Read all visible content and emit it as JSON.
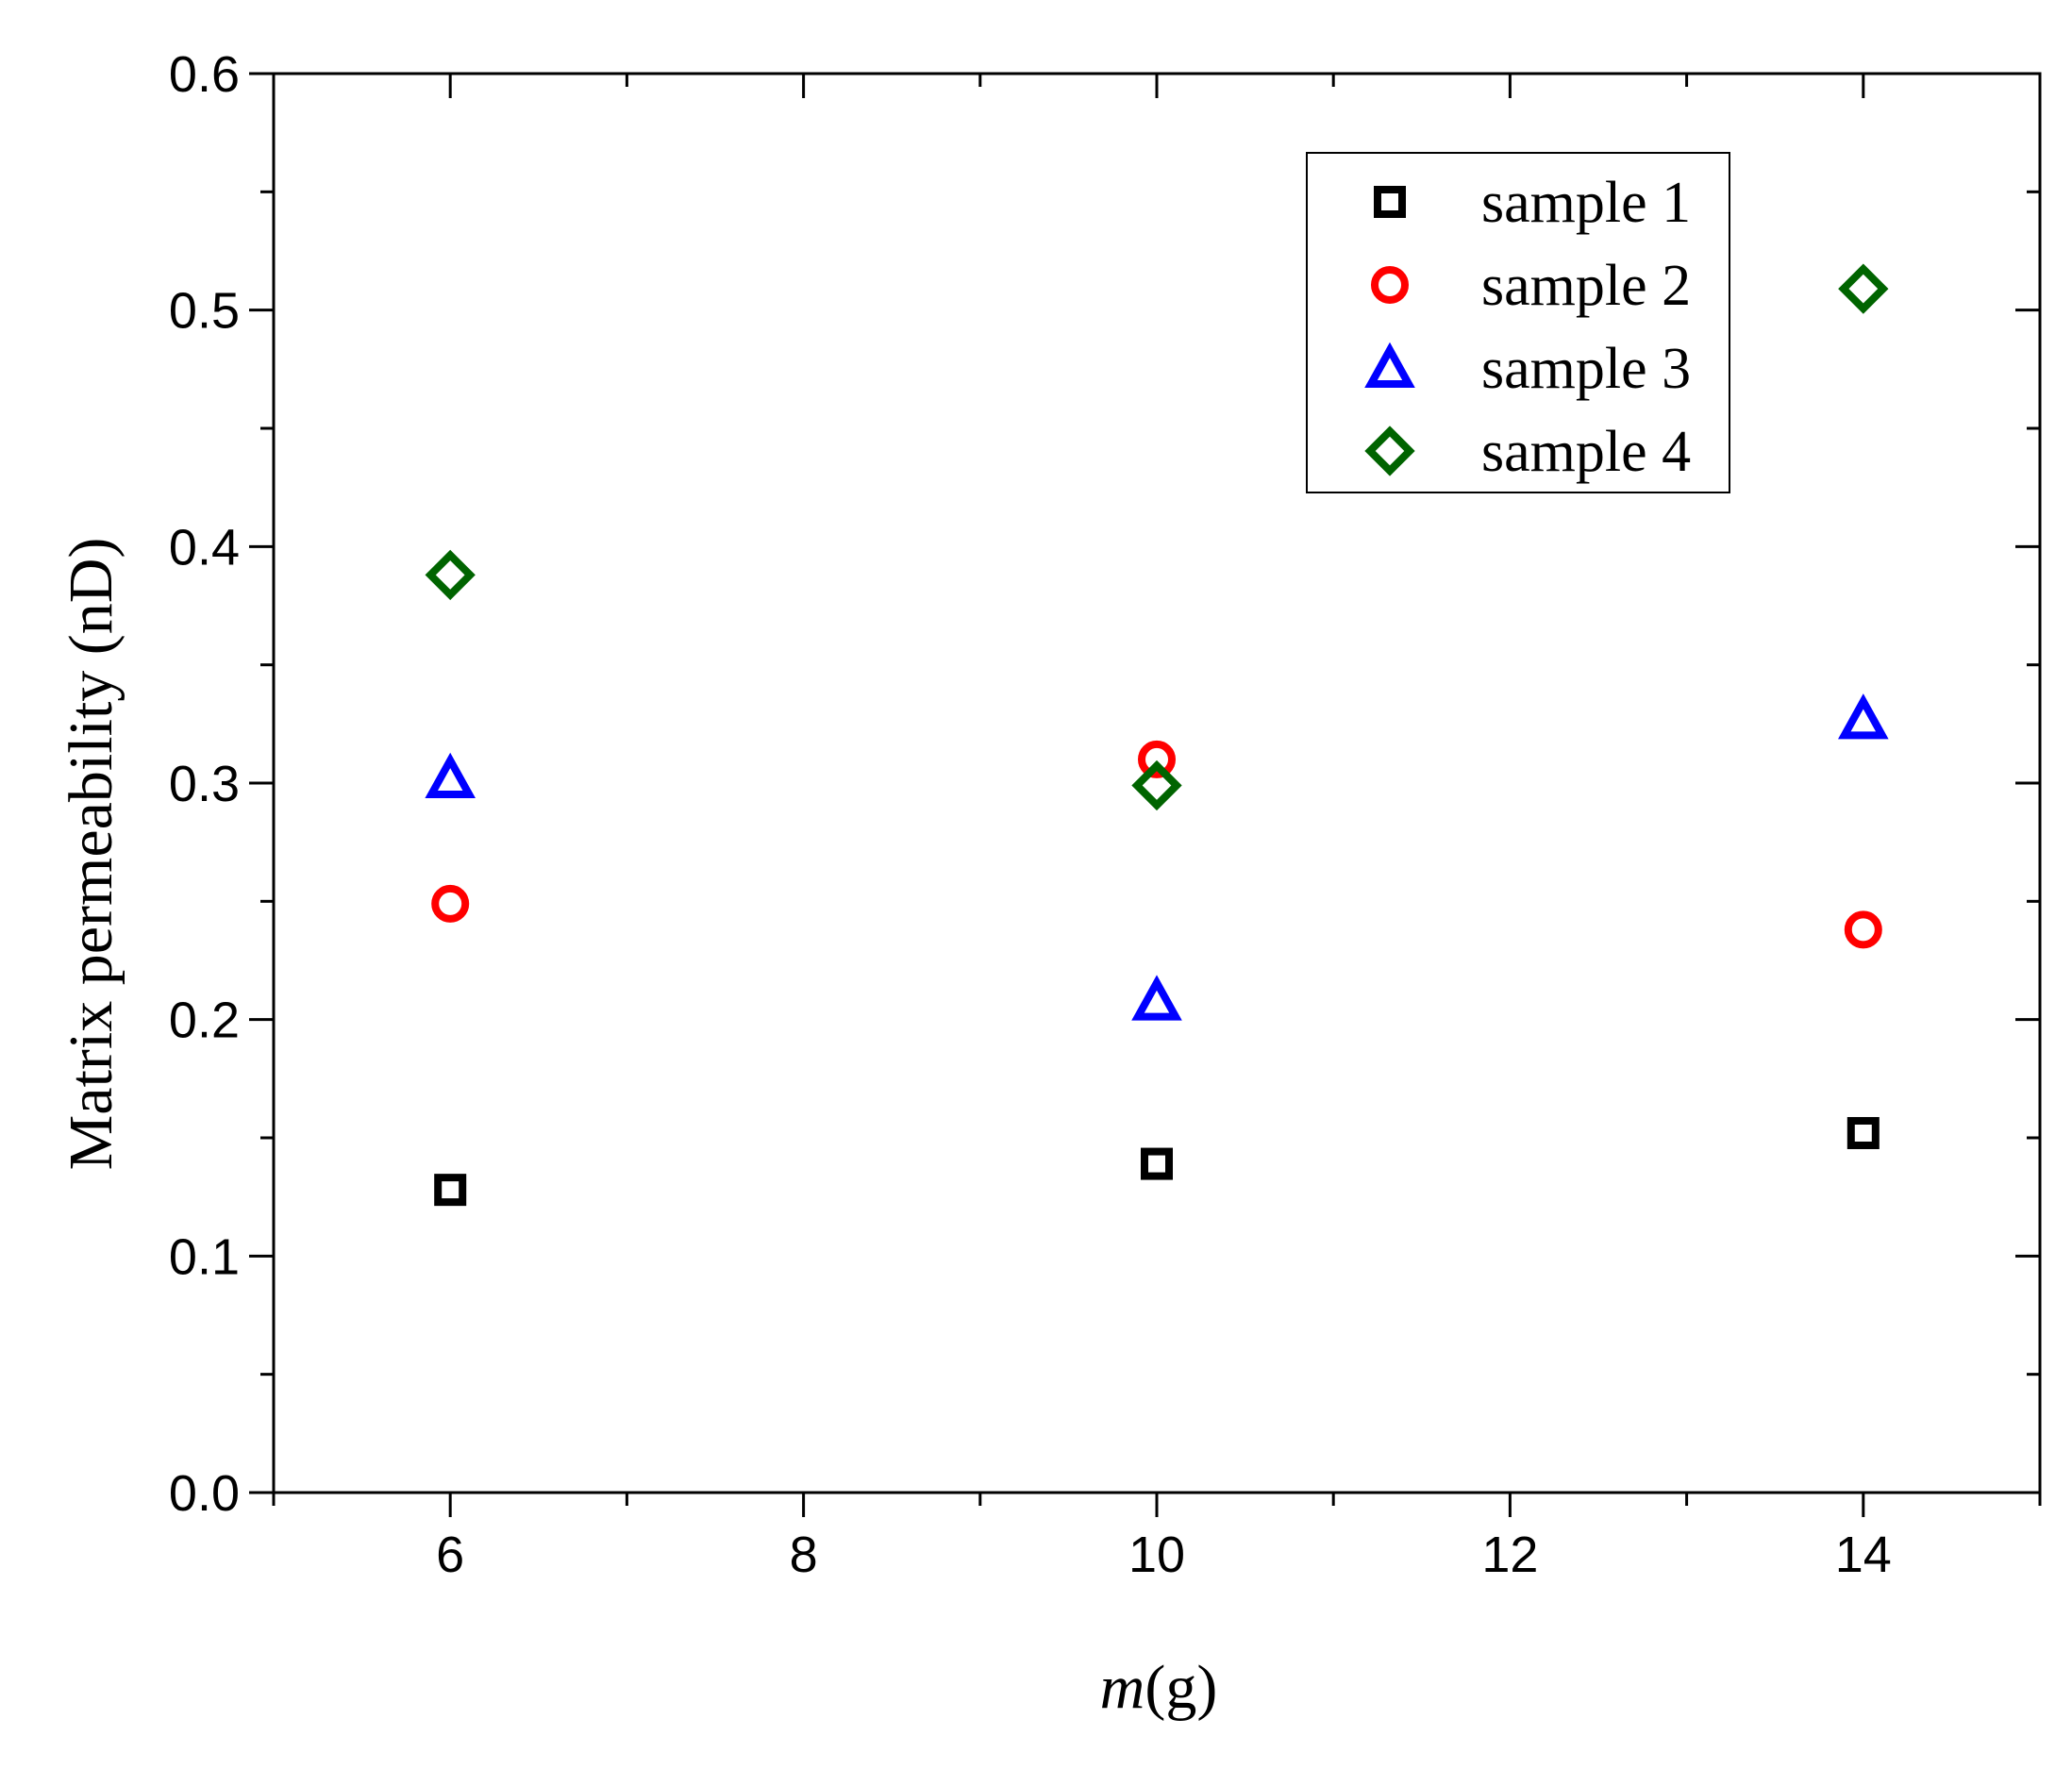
{
  "chart_data": {
    "type": "scatter",
    "title": "",
    "xlabel": "m(g)",
    "xlabel_italic_part": "m",
    "xlabel_rest": "(g)",
    "ylabel": "Matrix permeability (nD)",
    "xlim": [
      5,
      15
    ],
    "ylim": [
      0.0,
      0.6
    ],
    "xticks": [
      6,
      8,
      10,
      12,
      14
    ],
    "xtick_labels": [
      "6",
      "8",
      "10",
      "12",
      "14"
    ],
    "yticks": [
      0.0,
      0.1,
      0.2,
      0.3,
      0.4,
      0.5,
      0.6
    ],
    "ytick_labels": [
      "0.0",
      "0.1",
      "0.2",
      "0.3",
      "0.4",
      "0.5",
      "0.6"
    ],
    "grid": false,
    "legend_position": "top-right",
    "series": [
      {
        "name": "sample 1",
        "marker": "square",
        "color": "#000000",
        "x": [
          6,
          10,
          14
        ],
        "y": [
          0.128,
          0.139,
          0.152
        ]
      },
      {
        "name": "sample 2",
        "marker": "circle",
        "color": "#ff0000",
        "x": [
          6,
          10,
          14
        ],
        "y": [
          0.249,
          0.31,
          0.238
        ]
      },
      {
        "name": "sample 3",
        "marker": "triangle",
        "color": "#0000ff",
        "x": [
          6,
          10,
          14
        ],
        "y": [
          0.302,
          0.208,
          0.327
        ]
      },
      {
        "name": "sample 4",
        "marker": "diamond",
        "color": "#006400",
        "x": [
          6,
          10,
          14
        ],
        "y": [
          0.388,
          0.299,
          0.509
        ]
      }
    ]
  }
}
